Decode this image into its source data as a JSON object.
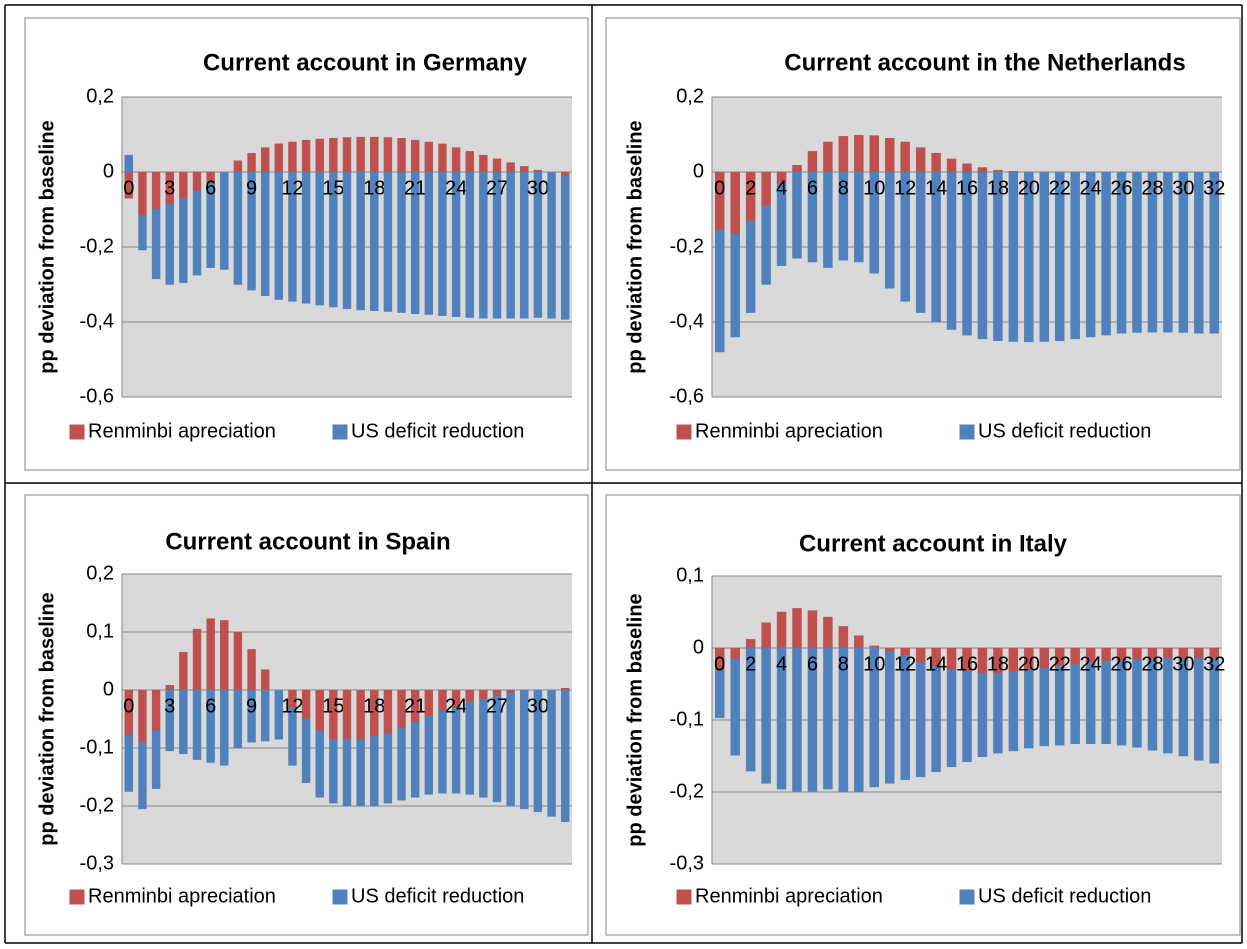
{
  "chart_data": [
    {
      "type": "bar",
      "stacked": true,
      "title": "Current account in Germany",
      "y_label": "pp  deviation from baseline",
      "categories": [
        "0",
        null,
        null,
        "3",
        null,
        null,
        "6",
        null,
        null,
        "9",
        null,
        null,
        "12",
        null,
        null,
        "15",
        null,
        null,
        "18",
        null,
        null,
        "21",
        null,
        null,
        "24",
        null,
        null,
        "27",
        null,
        null,
        "30",
        null,
        null
      ],
      "series": [
        {
          "name": "Renminbi apreciation",
          "color": "#c0504d",
          "values": [
            -0.07,
            -0.115,
            -0.1,
            -0.085,
            -0.07,
            -0.05,
            -0.03,
            0,
            0.03,
            0.05,
            0.065,
            0.075,
            0.08,
            0.085,
            0.088,
            0.09,
            0.092,
            0.093,
            0.093,
            0.092,
            0.09,
            0.085,
            0.08,
            0.075,
            0.065,
            0.055,
            0.045,
            0.035,
            0.025,
            0.015,
            0.005,
            0,
            -0.01
          ]
        },
        {
          "name": "US deficit reduction",
          "color": "#4f81bd",
          "values": [
            0.045,
            -0.093,
            -0.185,
            -0.215,
            -0.225,
            -0.225,
            -0.225,
            -0.26,
            -0.3,
            -0.315,
            -0.33,
            -0.34,
            -0.345,
            -0.35,
            -0.355,
            -0.36,
            -0.365,
            -0.368,
            -0.37,
            -0.372,
            -0.375,
            -0.378,
            -0.38,
            -0.383,
            -0.386,
            -0.388,
            -0.39,
            -0.39,
            -0.39,
            -0.39,
            -0.388,
            -0.39,
            -0.383
          ]
        }
      ],
      "ylim": [
        -0.6,
        0.2
      ],
      "yticks": [
        {
          "value": 0.2,
          "label": "0,2"
        },
        0,
        {
          "value": -0.2,
          "label": "-0,2"
        },
        {
          "value": -0.4,
          "label": "-0,4"
        },
        {
          "value": -0.6,
          "label": "-0,6"
        }
      ],
      "grid": true,
      "legend": "bottom"
    },
    {
      "type": "bar",
      "stacked": true,
      "title": "Current account in the Netherlands",
      "y_label": "pp  deviation from baseline",
      "categories": [
        "0",
        null,
        "2",
        null,
        "4",
        null,
        "6",
        null,
        "8",
        null,
        "10",
        null,
        "12",
        null,
        "14",
        null,
        "16",
        null,
        "18",
        null,
        "20",
        null,
        "22",
        null,
        "24",
        null,
        "26",
        null,
        "28",
        null,
        "30",
        null,
        "32"
      ],
      "series": [
        {
          "name": "Renminbi apreciation",
          "color": "#c0504d",
          "values": [
            -0.155,
            -0.165,
            -0.13,
            -0.09,
            -0.03,
            0.018,
            0.055,
            0.08,
            0.095,
            0.098,
            0.097,
            0.09,
            0.08,
            0.065,
            0.05,
            0.035,
            0.022,
            0.012,
            0.005,
            0.002,
            0,
            0,
            0,
            0,
            0,
            0,
            0,
            0,
            0,
            0,
            0,
            0,
            0
          ]
        },
        {
          "name": "US deficit reduction",
          "color": "#4f81bd",
          "values": [
            -0.325,
            -0.275,
            -0.245,
            -0.21,
            -0.22,
            -0.23,
            -0.24,
            -0.255,
            -0.235,
            -0.24,
            -0.27,
            -0.31,
            -0.345,
            -0.375,
            -0.4,
            -0.42,
            -0.435,
            -0.445,
            -0.45,
            -0.452,
            -0.453,
            -0.452,
            -0.45,
            -0.445,
            -0.44,
            -0.435,
            -0.43,
            -0.428,
            -0.427,
            -0.427,
            -0.428,
            -0.43,
            -0.43
          ]
        }
      ],
      "ylim": [
        -0.6,
        0.2
      ],
      "yticks": [
        {
          "value": 0.2,
          "label": "0,2"
        },
        0,
        {
          "value": -0.2,
          "label": "-0,2"
        },
        {
          "value": -0.4,
          "label": "-0,4"
        },
        {
          "value": -0.6,
          "label": "-0,6"
        }
      ],
      "grid": true,
      "legend": "bottom"
    },
    {
      "type": "bar",
      "stacked": true,
      "title": "Current account in Spain",
      "y_label": "pp  deviation from baseline",
      "categories": [
        "0",
        null,
        null,
        "3",
        null,
        null,
        "6",
        null,
        null,
        "9",
        null,
        null,
        "12",
        null,
        null,
        "15",
        null,
        null,
        "18",
        null,
        null,
        "21",
        null,
        null,
        "24",
        null,
        null,
        "27",
        null,
        null,
        "30",
        null,
        null
      ],
      "series": [
        {
          "name": "Renminbi apreciation",
          "color": "#c0504d",
          "values": [
            -0.078,
            -0.09,
            -0.07,
            0.008,
            0.065,
            0.105,
            0.123,
            0.12,
            0.1,
            0.07,
            0.035,
            0,
            -0.03,
            -0.05,
            -0.07,
            -0.085,
            -0.085,
            -0.085,
            -0.08,
            -0.075,
            -0.065,
            -0.055,
            -0.045,
            -0.035,
            -0.03,
            -0.02,
            -0.015,
            -0.01,
            -0.005,
            0,
            0,
            0,
            0.003
          ]
        },
        {
          "name": "US deficit reduction",
          "color": "#4f81bd",
          "values": [
            -0.097,
            -0.115,
            -0.1,
            -0.105,
            -0.11,
            -0.12,
            -0.125,
            -0.13,
            -0.1,
            -0.09,
            -0.088,
            -0.085,
            -0.1,
            -0.11,
            -0.115,
            -0.11,
            -0.115,
            -0.115,
            -0.12,
            -0.12,
            -0.125,
            -0.13,
            -0.135,
            -0.143,
            -0.148,
            -0.16,
            -0.17,
            -0.183,
            -0.195,
            -0.205,
            -0.21,
            -0.218,
            -0.227
          ]
        }
      ],
      "ylim": [
        -0.3,
        0.2
      ],
      "yticks": [
        {
          "value": 0.2,
          "label": "0,2"
        },
        {
          "value": 0.1,
          "label": "0,1"
        },
        0,
        {
          "value": -0.1,
          "label": "-0,1"
        },
        {
          "value": -0.2,
          "label": "-0,2"
        },
        {
          "value": -0.3,
          "label": "-0,3"
        }
      ],
      "grid": true,
      "legend": "bottom"
    },
    {
      "type": "bar",
      "stacked": true,
      "title": "Current account in Italy",
      "y_label": "pp  deviation from baseline",
      "categories": [
        "0",
        null,
        "2",
        null,
        "4",
        null,
        "6",
        null,
        "8",
        null,
        "10",
        null,
        "12",
        null,
        "14",
        null,
        "16",
        null,
        "18",
        null,
        "20",
        null,
        "22",
        null,
        "24",
        null,
        "26",
        null,
        "28",
        null,
        "30",
        null,
        "32"
      ],
      "series": [
        {
          "name": "Renminbi apreciation",
          "color": "#c0504d",
          "values": [
            -0.03,
            -0.015,
            0.012,
            0.035,
            0.05,
            0.055,
            0.052,
            0.043,
            0.03,
            0.017,
            0.003,
            -0.005,
            -0.01,
            -0.02,
            -0.025,
            -0.03,
            -0.033,
            -0.035,
            -0.035,
            -0.033,
            -0.03,
            -0.028,
            -0.025,
            -0.023,
            -0.02,
            -0.018,
            -0.017,
            -0.016,
            -0.015,
            -0.014,
            -0.014,
            -0.014,
            -0.014
          ]
        },
        {
          "name": "US deficit reduction",
          "color": "#4f81bd",
          "values": [
            -0.067,
            -0.134,
            -0.171,
            -0.188,
            -0.196,
            -0.199,
            -0.199,
            -0.196,
            -0.2,
            -0.2,
            -0.193,
            -0.183,
            -0.173,
            -0.159,
            -0.147,
            -0.135,
            -0.125,
            -0.116,
            -0.111,
            -0.11,
            -0.109,
            -0.108,
            -0.11,
            -0.11,
            -0.113,
            -0.115,
            -0.118,
            -0.122,
            -0.127,
            -0.132,
            -0.136,
            -0.142,
            -0.146
          ]
        }
      ],
      "ylim": [
        -0.3,
        0.1
      ],
      "yticks": [
        {
          "value": 0.1,
          "label": "0,1"
        },
        0,
        {
          "value": -0.1,
          "label": "-0,1"
        },
        {
          "value": -0.2,
          "label": "-0,2"
        },
        {
          "value": -0.3,
          "label": "-0,3"
        }
      ],
      "grid": true,
      "legend": "bottom"
    }
  ]
}
